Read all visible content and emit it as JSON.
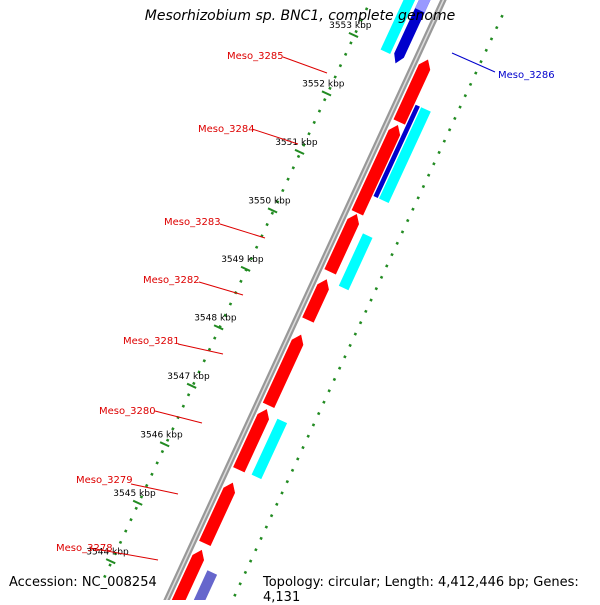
{
  "title": "Mesorhizobium sp. BNC1, complete genome",
  "footer": {
    "accession": "Accession: NC_008254",
    "summary": "Topology: circular; Length: 4,412,446 bp; Genes: 4,131"
  },
  "colors": {
    "forward_cds": "#ff0000",
    "reverse_cds": "#0000cc",
    "forward_orf": "#00ffff",
    "reverse_orf": "#6666cc",
    "forward_label": "#dd0000",
    "reverse_label": "#0000cc",
    "backbone": "#999999",
    "ticks": "#228b22"
  },
  "scale_ticks": [
    "3544 kbp",
    "3545 kbp",
    "3546 kbp",
    "3547 kbp",
    "3548 kbp",
    "3549 kbp",
    "3550 kbp",
    "3551 kbp",
    "3552 kbp",
    "3553 kbp"
  ],
  "genes": [
    {
      "name": "Meso_3278",
      "strand": "forward"
    },
    {
      "name": "Meso_3279",
      "strand": "forward"
    },
    {
      "name": "Meso_3280",
      "strand": "forward"
    },
    {
      "name": "Meso_3281",
      "strand": "forward"
    },
    {
      "name": "Meso_3282",
      "strand": "forward"
    },
    {
      "name": "Meso_3283",
      "strand": "forward"
    },
    {
      "name": "Meso_3284",
      "strand": "forward"
    },
    {
      "name": "Meso_3285",
      "strand": "forward"
    },
    {
      "name": "Meso_3286",
      "strand": "reverse"
    }
  ]
}
